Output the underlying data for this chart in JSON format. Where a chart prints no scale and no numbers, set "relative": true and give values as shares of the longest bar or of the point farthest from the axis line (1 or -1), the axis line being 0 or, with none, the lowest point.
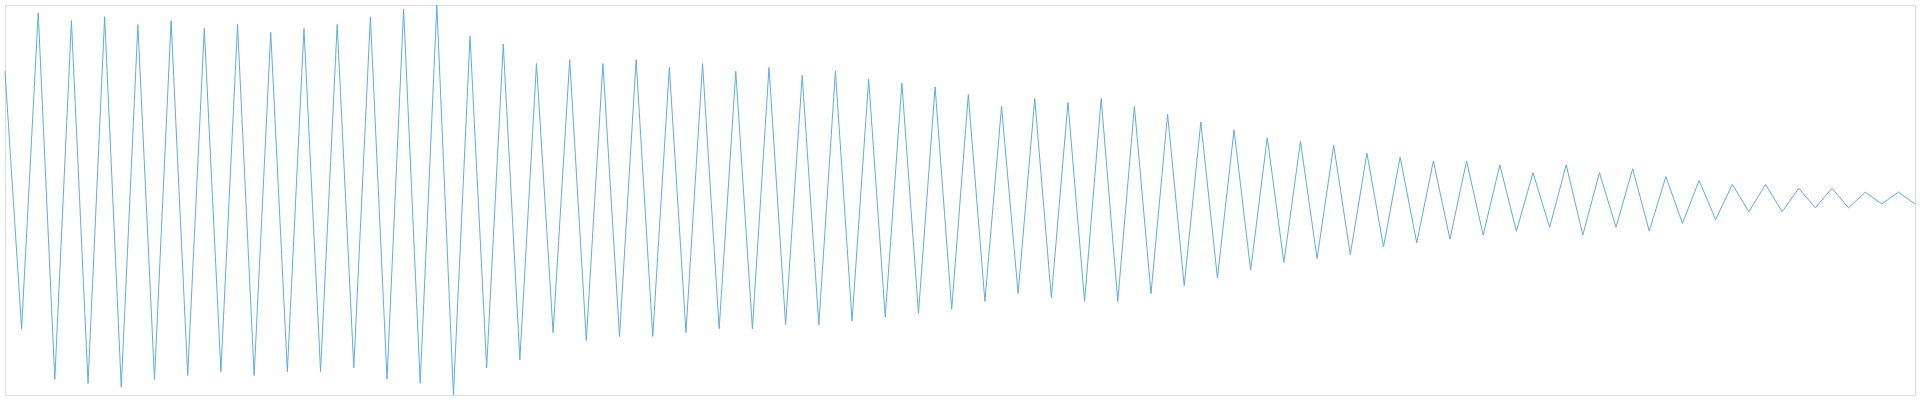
{
  "chart_data": {
    "type": "line",
    "relative": true,
    "color": "#5dade2",
    "marker": "none",
    "line_style": "solid",
    "tick_labels": false,
    "categories": [
      null,
      null,
      null,
      null,
      null,
      null,
      null,
      null,
      null,
      null,
      null,
      null,
      null,
      null,
      null,
      null,
      null,
      null,
      null,
      null,
      null,
      null,
      null,
      null,
      null,
      null,
      null,
      null,
      null,
      null,
      null,
      null,
      null,
      null,
      null,
      null,
      null,
      null,
      null,
      null,
      null,
      null,
      null,
      null,
      null,
      null,
      null,
      null,
      null,
      null,
      null,
      null,
      null,
      null,
      null,
      null,
      null,
      null,
      null,
      null,
      null,
      null,
      null,
      null,
      null,
      null,
      null,
      null,
      null,
      null,
      null,
      null,
      null,
      null,
      null,
      null,
      null,
      null,
      null,
      null,
      null,
      null,
      null,
      null,
      null,
      null,
      null,
      null,
      null,
      null,
      null,
      null,
      null,
      null,
      null,
      null,
      null,
      null,
      null,
      null,
      null,
      null,
      null,
      null,
      null,
      null,
      null,
      null,
      null,
      null,
      null,
      null,
      null,
      null,
      null,
      null
    ],
    "values": [
      0.83,
      0.17,
      0.98,
      0.04,
      0.96,
      0.03,
      0.97,
      0.02,
      0.95,
      0.04,
      0.96,
      0.05,
      0.94,
      0.06,
      0.95,
      0.05,
      0.93,
      0.06,
      0.94,
      0.06,
      0.95,
      0.07,
      0.97,
      0.04,
      0.99,
      0.03,
      1.0,
      0.0,
      0.92,
      0.07,
      0.9,
      0.09,
      0.85,
      0.16,
      0.86,
      0.14,
      0.85,
      0.15,
      0.86,
      0.15,
      0.84,
      0.16,
      0.85,
      0.17,
      0.83,
      0.17,
      0.84,
      0.18,
      0.82,
      0.18,
      0.83,
      0.19,
      0.81,
      0.2,
      0.8,
      0.21,
      0.79,
      0.22,
      0.77,
      0.24,
      0.74,
      0.26,
      0.76,
      0.25,
      0.75,
      0.24,
      0.76,
      0.24,
      0.74,
      0.26,
      0.72,
      0.28,
      0.7,
      0.3,
      0.68,
      0.32,
      0.66,
      0.34,
      0.65,
      0.35,
      0.64,
      0.36,
      0.62,
      0.38,
      0.61,
      0.39,
      0.6,
      0.4,
      0.6,
      0.41,
      0.59,
      0.42,
      0.57,
      0.43,
      0.59,
      0.41,
      0.57,
      0.43,
      0.58,
      0.42,
      0.56,
      0.44,
      0.55,
      0.45,
      0.54,
      0.47,
      0.54,
      0.47,
      0.53,
      0.48,
      0.53,
      0.48,
      0.52,
      0.49,
      0.52,
      0.49
    ]
  }
}
